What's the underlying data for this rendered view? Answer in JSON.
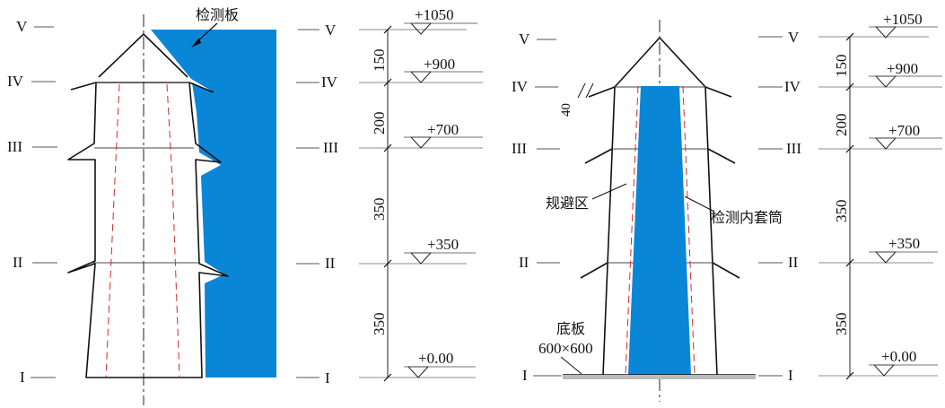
{
  "left_diagram": {
    "levels": [
      "V",
      "IV",
      "III",
      "II",
      "I"
    ],
    "dims": [
      "150",
      "200",
      "350",
      "350"
    ],
    "elevations": [
      "+1050",
      "+900",
      "+700",
      "+350",
      "+0.00"
    ],
    "annotation": "检测板",
    "panel_color": "#0a86d6"
  },
  "right_diagram": {
    "levels": [
      "V",
      "IV",
      "III",
      "II",
      "I"
    ],
    "dims": [
      "150",
      "200",
      "350",
      "350"
    ],
    "elevations": [
      "+1050",
      "+900",
      "+700",
      "+350",
      "+0.00"
    ],
    "top_dim": "40",
    "label_avoid": "规避区",
    "label_sleeve": "检测内套筒",
    "label_base_1": "底板",
    "label_base_2": "600×600",
    "sleeve_color": "#0a86d6"
  }
}
